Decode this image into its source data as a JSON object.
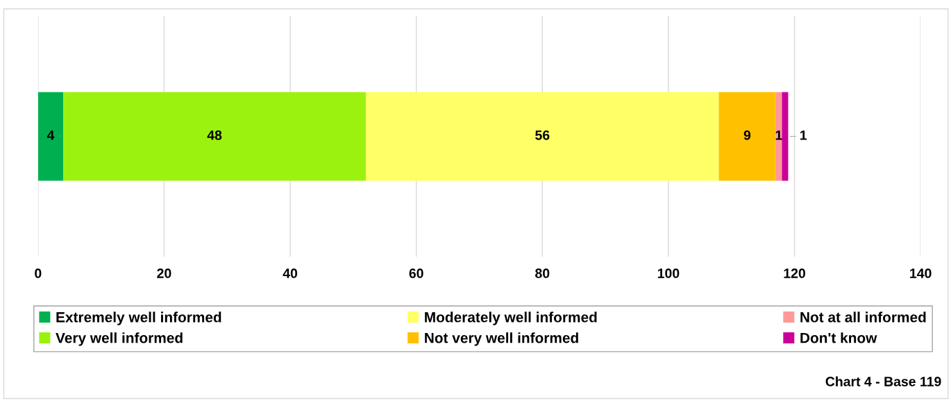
{
  "chart_data": {
    "type": "bar",
    "orientation": "horizontal",
    "stacked": true,
    "categories": [
      null
    ],
    "series": [
      {
        "name": "Extremely well informed",
        "color": "#00b050",
        "values": [
          4
        ]
      },
      {
        "name": "Very well informed",
        "color": "#9cf20f",
        "values": [
          48
        ]
      },
      {
        "name": "Moderately well informed",
        "color": "#ffff66",
        "values": [
          56
        ]
      },
      {
        "name": "Not very well informed",
        "color": "#ffc000",
        "values": [
          9
        ]
      },
      {
        "name": "Not at all informed",
        "color": "#ff9999",
        "values": [
          1
        ]
      },
      {
        "name": "Don't know",
        "color": "#cc0099",
        "values": [
          1
        ]
      }
    ],
    "xlim": [
      0,
      140
    ],
    "xticks": [
      0,
      20,
      40,
      60,
      80,
      100,
      120,
      140
    ],
    "grid": "x",
    "legend": "bottom",
    "data_labels": true,
    "annotations": [
      "Chart 4 - Base 119"
    ]
  }
}
